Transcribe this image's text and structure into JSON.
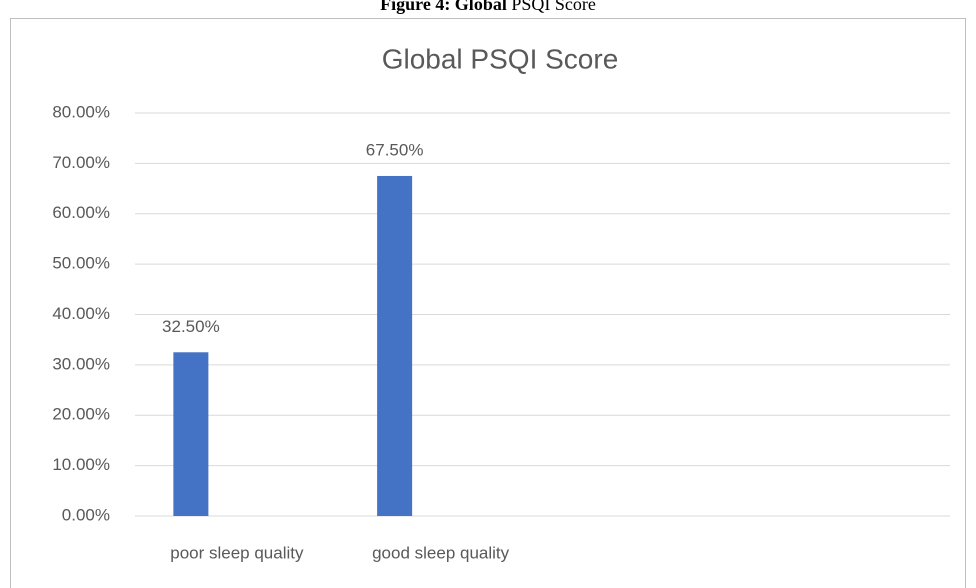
{
  "caption": {
    "bold": "Figure 4: Global",
    "text": "PSQI Score"
  },
  "chart_data": {
    "type": "bar",
    "title": "Global PSQI Score",
    "categories": [
      "poor sleep quality",
      "good sleep quality",
      null,
      null
    ],
    "values": [
      32.5,
      67.5,
      null,
      null
    ],
    "value_labels": [
      "32.50%",
      "67.50%",
      null,
      null
    ],
    "color": "#4472c4",
    "ylim": [
      0,
      80
    ],
    "yticks": [
      {
        "value": 0,
        "label": "0.00%"
      },
      {
        "value": 10,
        "label": "10.00%"
      },
      {
        "value": 20,
        "label": "20.00%"
      },
      {
        "value": 30,
        "label": "30.00%"
      },
      {
        "value": 40,
        "label": "40.00%"
      },
      {
        "value": 50,
        "label": "50.00%"
      },
      {
        "value": 60,
        "label": "60.00%"
      },
      {
        "value": 70,
        "label": "70.00%"
      },
      {
        "value": 80,
        "label": "80.00%"
      }
    ],
    "grid": true
  }
}
